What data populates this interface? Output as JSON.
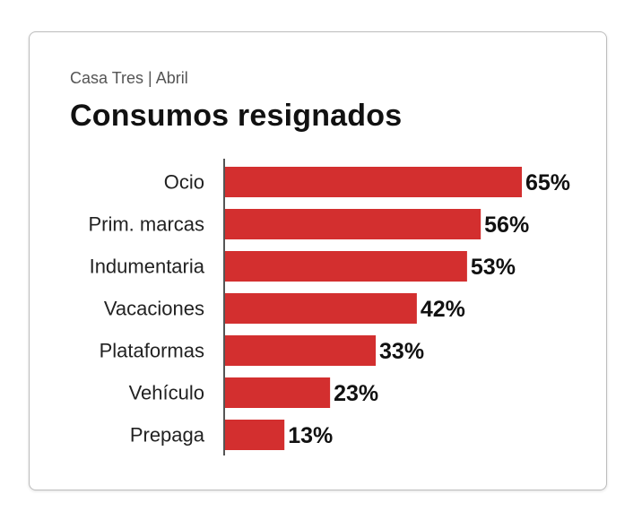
{
  "header": {
    "subtitle": "Casa Tres | Abril",
    "title": "Consumos resignados"
  },
  "chart_data": {
    "type": "bar",
    "orientation": "horizontal",
    "categories": [
      "Ocio",
      "Prim. marcas",
      "Indumentaria",
      "Vacaciones",
      "Plataformas",
      "Vehículo",
      "Prepaga"
    ],
    "values": [
      65,
      56,
      53,
      42,
      33,
      23,
      13
    ],
    "value_labels": [
      "65%",
      "56%",
      "53%",
      "42%",
      "33%",
      "23%",
      "13%"
    ],
    "xlim": [
      0,
      65
    ],
    "grid": false,
    "legend": "none",
    "bar_color": "#d32f2f",
    "axis_color": "#555555"
  }
}
